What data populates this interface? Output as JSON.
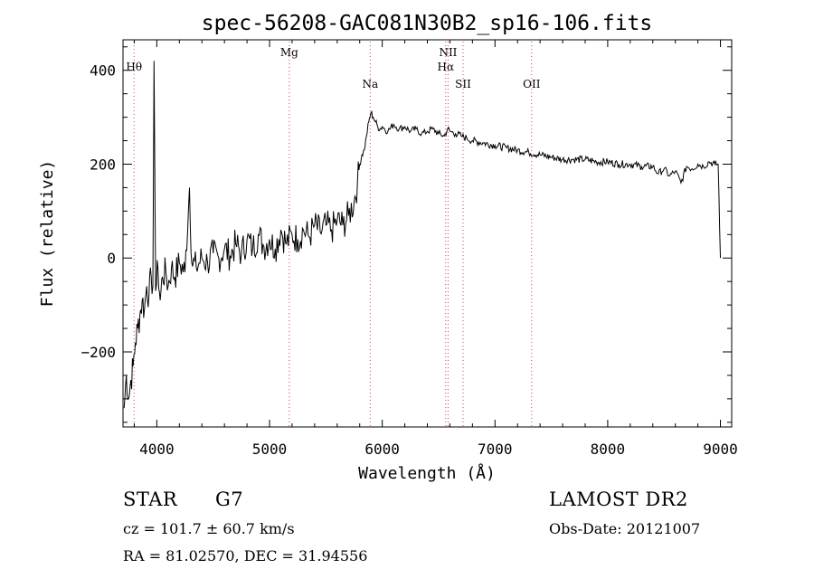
{
  "chart_data": {
    "type": "line",
    "title": "spec-56208-GAC081N30B2_sp16-106.fits",
    "xlabel": "Wavelength (Å)",
    "ylabel": "Flux (relative)",
    "xlim": [
      3700,
      9100
    ],
    "ylim": [
      -360,
      465
    ],
    "xticks": [
      4000,
      5000,
      6000,
      7000,
      8000,
      9000
    ],
    "yticks": [
      -200,
      0,
      200,
      400
    ],
    "xtick_labels": [
      "4000",
      "5000",
      "6000",
      "7000",
      "8000",
      "9000"
    ],
    "ytick_labels": [
      "−200",
      "0",
      "200",
      "400"
    ],
    "lines": [
      {
        "label": "Hθ",
        "wavelength": 3798
      },
      {
        "label": "Mg",
        "wavelength": 5175
      },
      {
        "label": "Na",
        "wavelength": 5893
      },
      {
        "label": "NII",
        "wavelength": 6584
      },
      {
        "label": "Hα",
        "wavelength": 6563
      },
      {
        "label": "SII",
        "wavelength": 6717
      },
      {
        "label": "OII",
        "wavelength": 7325
      }
    ],
    "series": [
      {
        "x": [
          3710,
          3730,
          3750,
          3770,
          3790,
          3810,
          3830,
          3850,
          3870,
          3890,
          3910,
          3930,
          3950,
          3965,
          3975,
          3990,
          4010,
          4030,
          4050,
          4080,
          4100,
          4130,
          4160,
          4200,
          4250,
          4290,
          4310,
          4350,
          4400,
          4450,
          4500,
          4550,
          4600,
          4650,
          4700,
          4750,
          4800,
          4850,
          4900,
          4950,
          5000,
          5050,
          5100,
          5150,
          5200,
          5250,
          5300,
          5350,
          5400,
          5450,
          5500,
          5550,
          5600,
          5650,
          5700,
          5750,
          5780,
          5800,
          5820,
          5840,
          5860,
          5880,
          5900,
          5920,
          5940,
          5960,
          5980,
          6000,
          6050,
          6100,
          6150,
          6200,
          6250,
          6300,
          6350,
          6400,
          6450,
          6500,
          6550,
          6580,
          6600,
          6650,
          6700,
          6750,
          6800,
          6900,
          7000,
          7100,
          7200,
          7300,
          7400,
          7500,
          7600,
          7700,
          7800,
          7900,
          8000,
          8100,
          8200,
          8300,
          8400,
          8450,
          8500,
          8550,
          8600,
          8650,
          8700,
          8750,
          8800,
          8850,
          8900,
          8950,
          8980,
          9000
        ],
        "y": [
          -320,
          -250,
          -300,
          -260,
          -230,
          -180,
          -150,
          -120,
          -90,
          -110,
          -60,
          -80,
          -40,
          -60,
          420,
          -70,
          -20,
          -90,
          -40,
          -30,
          -60,
          -20,
          -40,
          -10,
          -30,
          150,
          -10,
          -20,
          0,
          -10,
          10,
          0,
          20,
          5,
          30,
          10,
          40,
          20,
          50,
          25,
          40,
          20,
          60,
          30,
          50,
          40,
          60,
          45,
          70,
          55,
          70,
          60,
          80,
          70,
          90,
          120,
          160,
          200,
          220,
          230,
          260,
          290,
          310,
          300,
          290,
          280,
          275,
          280,
          270,
          285,
          275,
          280,
          270,
          275,
          265,
          270,
          275,
          265,
          260,
          275,
          270,
          265,
          260,
          255,
          250,
          245,
          240,
          235,
          230,
          225,
          220,
          215,
          210,
          210,
          210,
          205,
          205,
          200,
          200,
          195,
          195,
          180,
          190,
          175,
          185,
          160,
          195,
          190,
          200,
          195,
          205,
          200,
          200,
          0
        ]
      }
    ]
  },
  "footer": {
    "class_label": "STAR",
    "subclass": "G7",
    "survey": "LAMOST DR2",
    "cz": "cz = 101.7 ± 60.7 km/s",
    "obs_date": "Obs-Date: 20121007",
    "coords": "RA =  81.02570, DEC =  31.94556"
  }
}
